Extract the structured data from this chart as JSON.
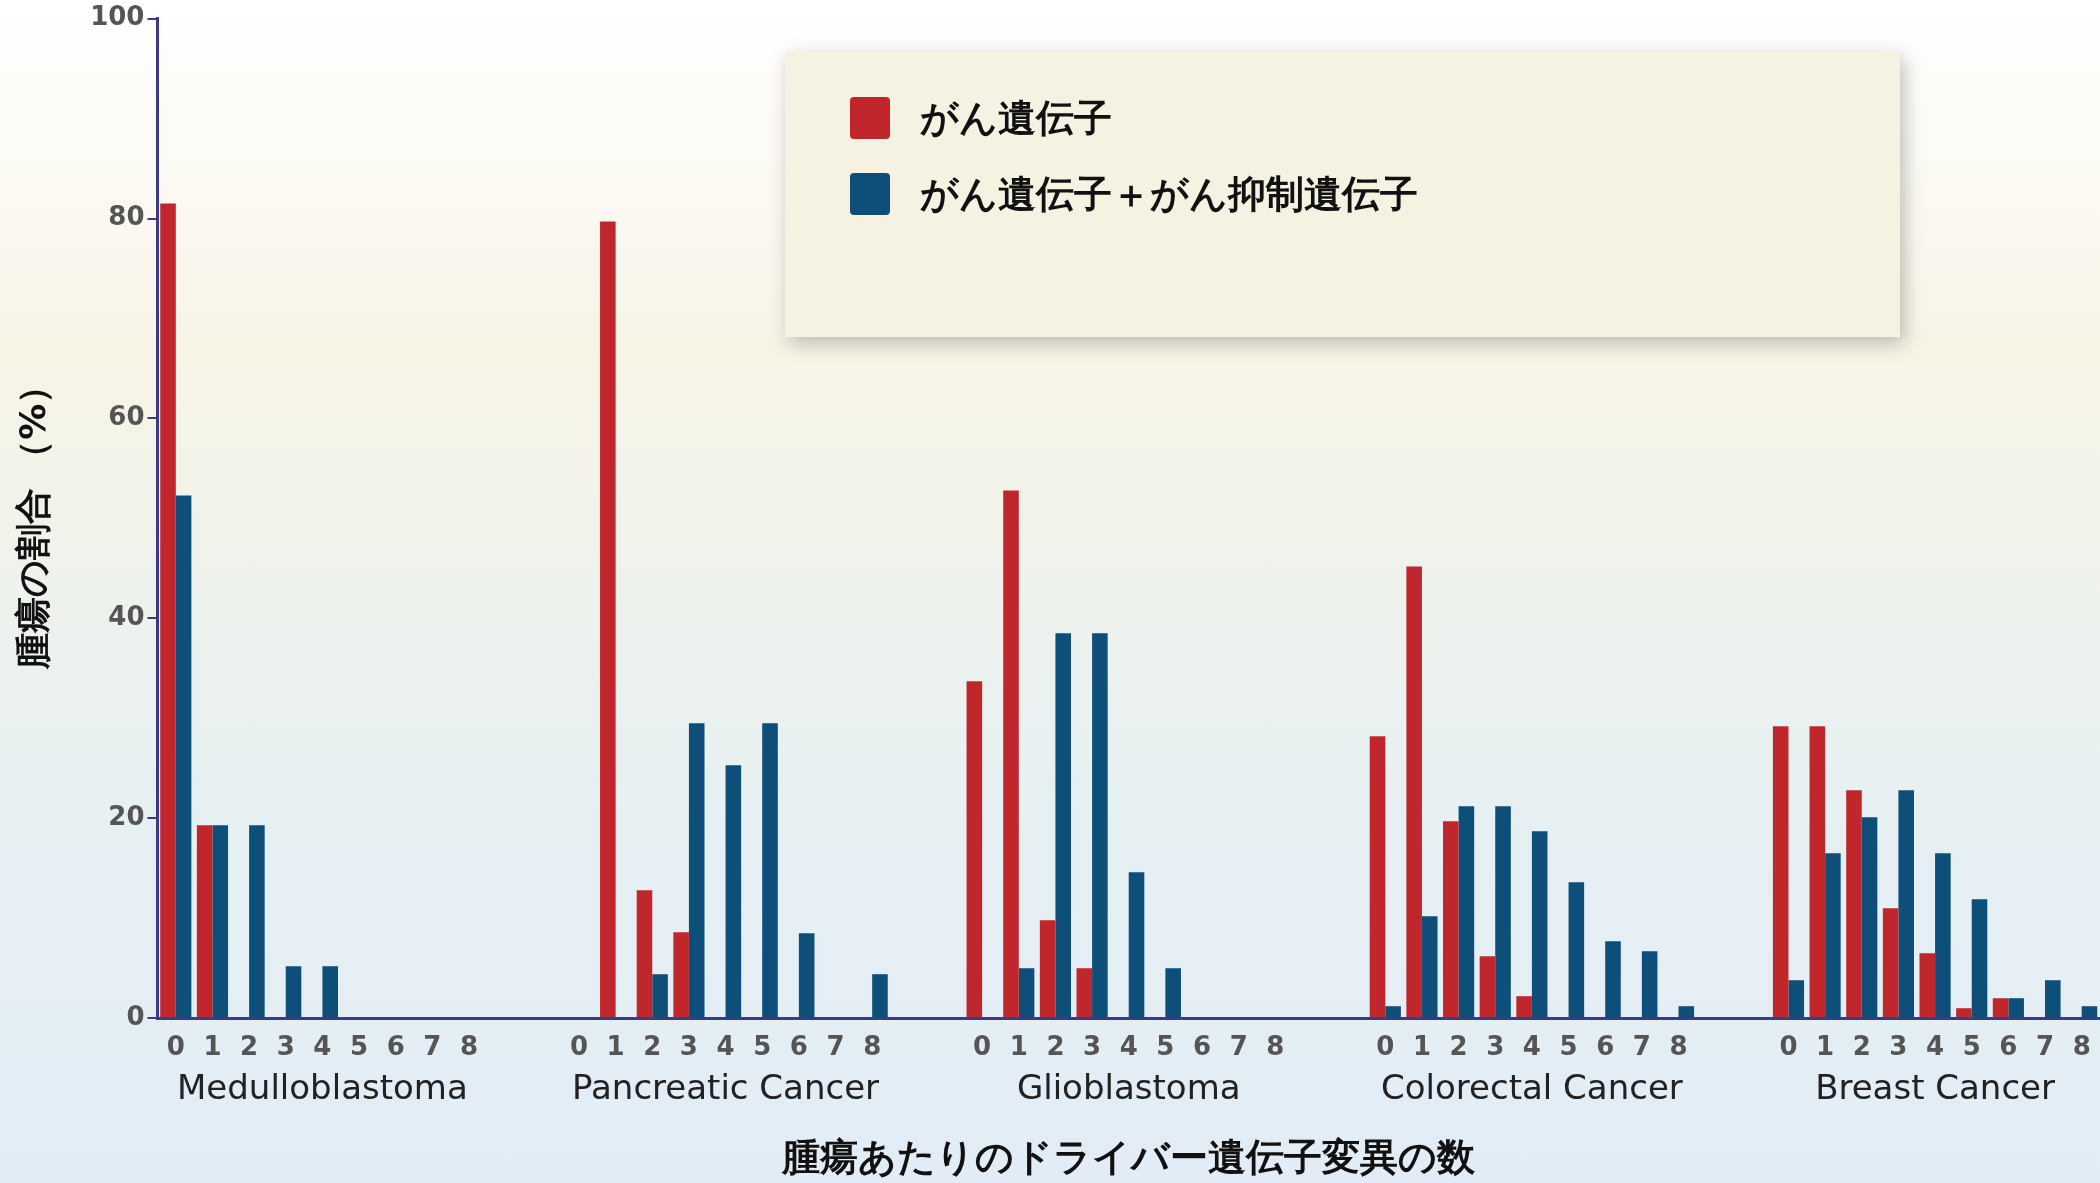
{
  "chart_data": {
    "type": "bar",
    "xlabel": "腫瘍あたりのドライバー遺伝子変異の数",
    "ylabel": "腫瘍の割合 （%）",
    "categories": [
      "0",
      "1",
      "2",
      "3",
      "4",
      "5",
      "6",
      "7",
      "8",
      null,
      null,
      "0",
      "1",
      "2",
      "3",
      "4",
      "5",
      "6",
      "7",
      "8",
      null,
      null,
      "0",
      "1",
      "2",
      "3",
      "4",
      "5",
      "6",
      "7",
      "8",
      null,
      null,
      "0",
      "1",
      "2",
      "3",
      "4",
      "5",
      "6",
      "7",
      "8",
      null,
      null,
      "0",
      "1",
      "2",
      "3",
      "4",
      "5",
      "6",
      "7",
      "8"
    ],
    "series": [
      {
        "name": "がん遺伝子",
        "color": "#c0272d",
        "values": [
          81.5,
          19.3,
          0,
          0,
          0,
          0,
          0,
          0,
          0,
          null,
          null,
          0,
          79.7,
          12.8,
          8.6,
          0,
          0,
          0,
          0,
          0,
          null,
          null,
          33.7,
          52.8,
          9.8,
          5,
          0,
          0,
          0,
          0,
          0,
          null,
          null,
          28.2,
          45.2,
          19.7,
          6.2,
          2.2,
          0,
          0,
          0,
          0,
          null,
          null,
          29.2,
          29.2,
          22.8,
          11,
          6.5,
          1,
          2,
          0,
          0
        ]
      },
      {
        "name": "がん遺伝子＋がん抑制遺伝子",
        "color": "#0d4f79",
        "values": [
          52.3,
          19.3,
          19.3,
          5.2,
          5.2,
          0,
          0,
          0,
          0,
          null,
          null,
          0,
          0,
          4.4,
          29.5,
          25.3,
          29.5,
          8.5,
          0,
          4.4,
          null,
          null,
          0,
          5,
          38.5,
          38.5,
          14.6,
          5,
          0,
          0,
          0,
          null,
          null,
          1.2,
          10.2,
          21.2,
          21.2,
          18.7,
          13.6,
          7.7,
          6.7,
          1.2,
          null,
          null,
          3.8,
          16.5,
          20.1,
          22.8,
          16.5,
          11.9,
          2,
          3.8,
          1.2
        ]
      }
    ],
    "annotations": [
      "Medulloblastoma",
      "Pancreatic Cancer",
      "Glioblastoma",
      "Colorectal Cancer",
      "Breast Cancer"
    ],
    "ylim": [
      0,
      100
    ],
    "yticks": [
      0,
      20,
      40,
      60,
      80,
      100
    ],
    "grid": false,
    "legend": "top"
  }
}
